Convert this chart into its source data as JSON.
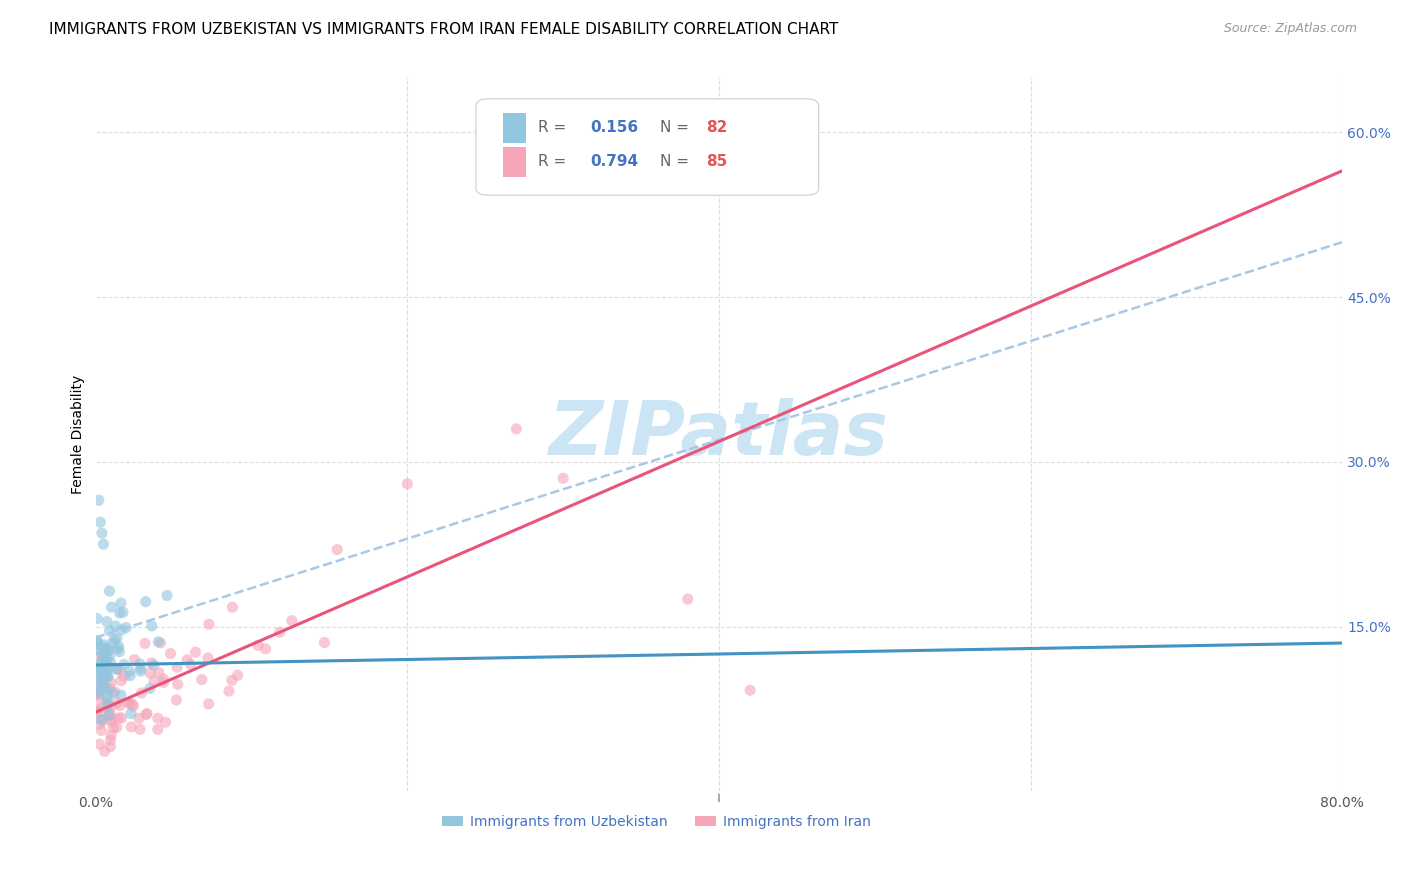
{
  "title": "IMMIGRANTS FROM UZBEKISTAN VS IMMIGRANTS FROM IRAN FEMALE DISABILITY CORRELATION CHART",
  "source": "Source: ZipAtlas.com",
  "ylabel": "Female Disability",
  "y_ticks_right": [
    0.15,
    0.3,
    0.45,
    0.6
  ],
  "y_tick_labels_right": [
    "15.0%",
    "30.0%",
    "45.0%",
    "60.0%"
  ],
  "x_tick_positions": [
    0.0,
    0.2,
    0.4,
    0.6,
    0.8
  ],
  "x_tick_labels": [
    "0.0%",
    "",
    "",
    "",
    "80.0%"
  ],
  "series": [
    {
      "name": "Immigrants from Uzbekistan",
      "R": 0.156,
      "N": 82,
      "color": "#92c5de",
      "trend_color": "#4393c3",
      "alpha": 0.6
    },
    {
      "name": "Immigrants from Iran",
      "R": 0.794,
      "N": 85,
      "color": "#f4a5b8",
      "trend_color": "#e8547a",
      "alpha": 0.6
    }
  ],
  "dashed_line_color": "#a8c8e8",
  "watermark": "ZIPatlas",
  "watermark_color": "#cce5f5",
  "background_color": "#ffffff",
  "grid_color": "#dddddd",
  "title_fontsize": 11,
  "axis_label_fontsize": 10,
  "tick_fontsize": 10,
  "right_tick_color": "#4472c4",
  "legend_R_color": "#4472c4",
  "legend_N_color": "#e05555",
  "bottom_legend_color": "#4472c4"
}
